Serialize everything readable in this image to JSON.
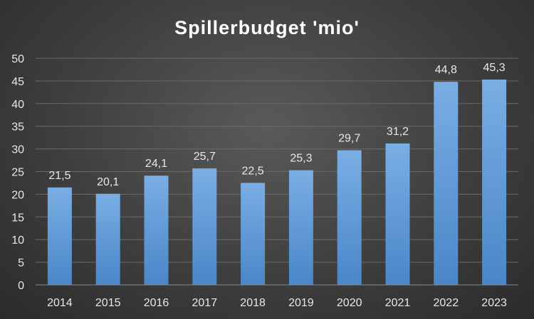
{
  "chart_data": {
    "type": "bar",
    "title": "Spillerbudget 'mio'",
    "categories": [
      "2014",
      "2015",
      "2016",
      "2017",
      "2018",
      "2019",
      "2020",
      "2021",
      "2022",
      "2023"
    ],
    "values": [
      21.5,
      20.1,
      24.1,
      25.7,
      22.5,
      25.3,
      29.7,
      31.2,
      44.8,
      45.3
    ],
    "data_labels": [
      "21,5",
      "20,1",
      "24,1",
      "25,7",
      "22,5",
      "25,3",
      "29,7",
      "31,2",
      "44,8",
      "45,3"
    ],
    "yticks": [
      "0",
      "5",
      "10",
      "15",
      "20",
      "25",
      "30",
      "35",
      "40",
      "45",
      "50"
    ],
    "ylim": [
      0,
      50
    ],
    "xlabel": "",
    "ylabel": "",
    "grid": true,
    "legend": "none",
    "colors": {
      "bar_top": "#7aaee4",
      "bar_bottom": "#4a86c8",
      "background": "#3e3e3e",
      "text": "#e8e8e8"
    }
  }
}
